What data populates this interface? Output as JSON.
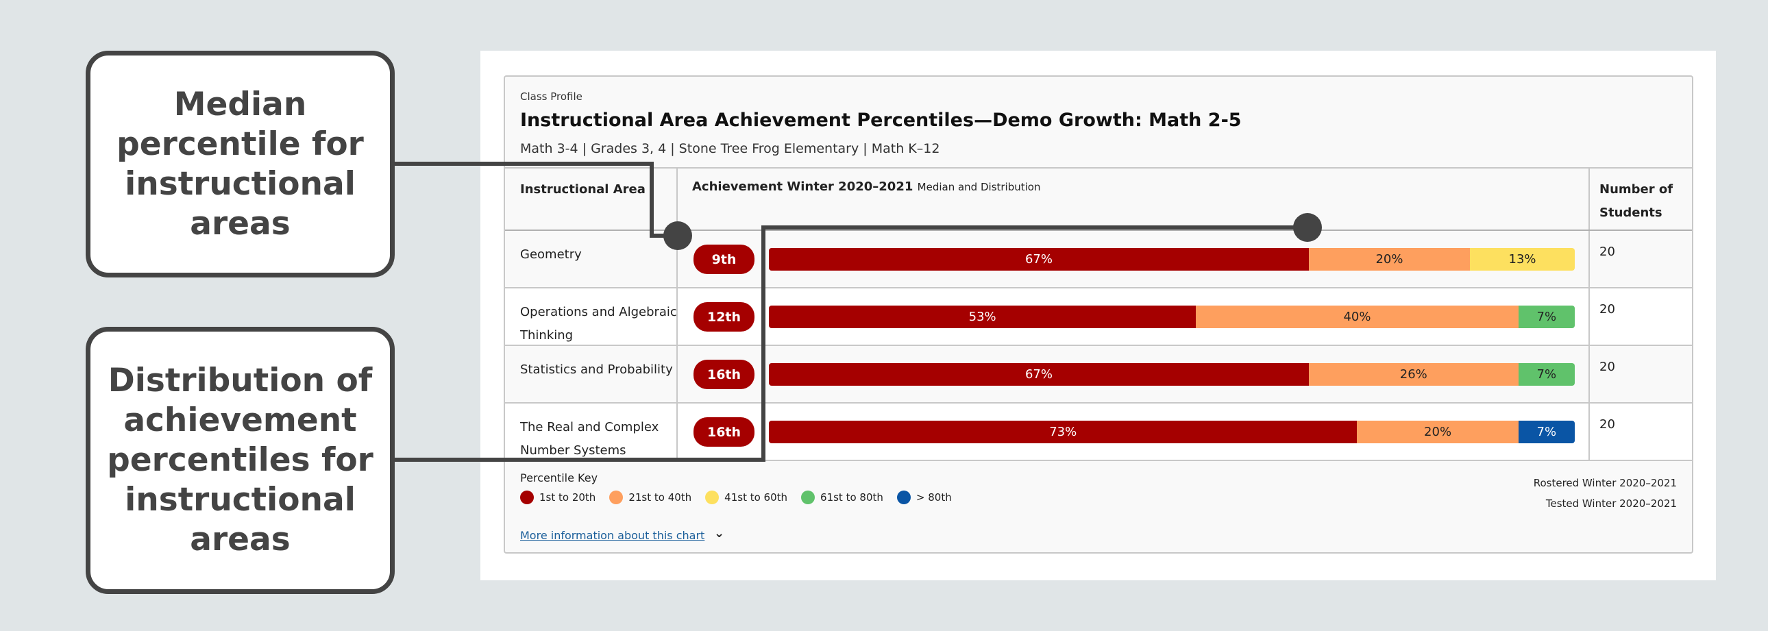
{
  "card": {
    "eyebrow": "Class Profile",
    "title": "Instructional Area Achievement Percentiles—Demo Growth: Math 2-5",
    "subtitle": "Math 3-4 | Grades 3, 4 | Stone Tree Frog Elementary | Math K–12"
  },
  "table": {
    "headers": {
      "area": "Instructional Area",
      "achievement": "Achievement Winter 2020–2021",
      "achievement_sub": "Median and Distribution",
      "students": "Number of Students"
    },
    "rows": [
      {
        "area": "Geometry",
        "median": "9th",
        "students": "20",
        "dist": [
          {
            "band": "1st to 20th",
            "pct": 67,
            "label": "67%"
          },
          {
            "band": "21st to 40th",
            "pct": 20,
            "label": "20%"
          },
          {
            "band": "41st to 60th",
            "pct": 13,
            "label": "13%"
          }
        ]
      },
      {
        "area": "Operations and Algebraic Thinking",
        "median": "12th",
        "students": "20",
        "dist": [
          {
            "band": "1st to 20th",
            "pct": 53,
            "label": "53%"
          },
          {
            "band": "21st to 40th",
            "pct": 40,
            "label": "40%"
          },
          {
            "band": "61st to 80th",
            "pct": 7,
            "label": "7%"
          }
        ]
      },
      {
        "area": "Statistics and Probability",
        "median": "16th",
        "students": "20",
        "dist": [
          {
            "band": "1st to 20th",
            "pct": 67,
            "label": "67%"
          },
          {
            "band": "21st to 40th",
            "pct": 26,
            "label": "26%"
          },
          {
            "band": "61st to 80th",
            "pct": 7,
            "label": "7%"
          }
        ]
      },
      {
        "area": "The Real and Complex Number Systems",
        "median": "16th",
        "students": "20",
        "dist": [
          {
            "band": "1st to 20th",
            "pct": 73,
            "label": "73%"
          },
          {
            "band": "21st to 40th",
            "pct": 20,
            "label": "20%"
          },
          {
            "band": "> 80th",
            "pct": 7,
            "label": "7%"
          }
        ]
      }
    ]
  },
  "legend": {
    "title": "Percentile Key",
    "items": [
      {
        "label": "1st to 20th",
        "color": "#a50000",
        "text": "#ffffff"
      },
      {
        "label": "21st to 40th",
        "color": "#fe9f5e",
        "text": "#222222"
      },
      {
        "label": "41st to 60th",
        "color": "#fde05f",
        "text": "#222222"
      },
      {
        "label": "61st to 80th",
        "color": "#60c26b",
        "text": "#222222"
      },
      {
        "label": "> 80th",
        "color": "#0a55a5",
        "text": "#ffffff"
      }
    ]
  },
  "meta": {
    "rostered": "Rostered Winter 2020–2021",
    "tested": "Tested Winter 2020–2021"
  },
  "more_link": "More information about this chart",
  "callouts": {
    "median": "Median percentile for instructional areas",
    "distribution": "Distribution of achievement percentiles for instructional areas"
  }
}
